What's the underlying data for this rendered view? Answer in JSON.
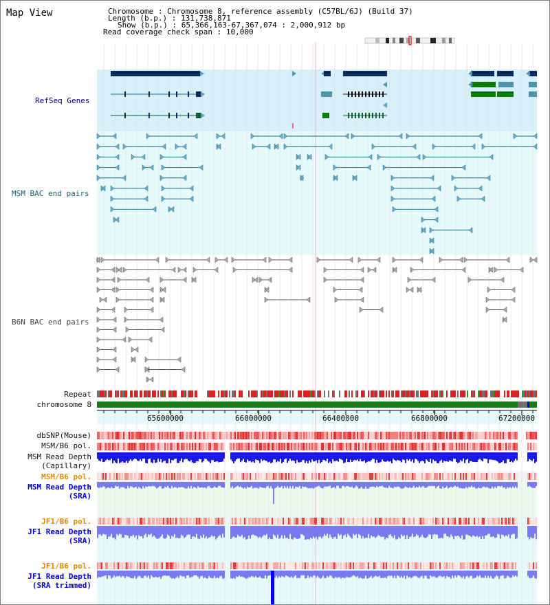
{
  "header": {
    "title": "Map View",
    "chromosome_label": "Chromosome",
    "chromosome_value": "Chromosome 8, reference assembly (C57BL/6J) (Build 37)",
    "length_label": "Length (b.p.)",
    "length_value": "131,738,871",
    "show_label": "Show (b.p.)",
    "show_value": "65,366,163-67,367,074 : 2,000,912 bp",
    "coverage_label": "Read coverage check span",
    "coverage_value": "10,000"
  },
  "tracks": {
    "refseq": "RefSeq Genes",
    "msm_bac": "MSM BAC end pairs",
    "b6n_bac": "B6N BAC end pairs",
    "repeat": "Repeat",
    "chromosome": "chromosome 8",
    "dbsnp": "dbSNP(Mouse)",
    "msm_pol": "MSM/B6 pol.",
    "msm_depth_1": "MSM Read Depth",
    "msm_depth_2": "(Capillary)",
    "msm_pol2": "MSM/B6 pol.",
    "msm_sra_1": "MSM Read Depth",
    "msm_sra_2": "(SRA)",
    "jf1_pol": "JF1/B6 pol.",
    "jf1_sra_1": "JF1 Read Depth",
    "jf1_sra_2": "(SRA)",
    "jf1_pol2": "JF1/B6 pol.",
    "jf1_trim_1": "JF1 Read Depth",
    "jf1_trim_2": "(SRA trimmed)"
  },
  "ruler": {
    "ticks": [
      "65600000",
      "66000000",
      "66400000",
      "66800000",
      "67200000"
    ]
  },
  "colors": {
    "refseq_bg": "#d8f0fa",
    "msm_bg": "#e6fafa",
    "navy_gene": "#0b2a5c",
    "teal_feature": "#4f93ad",
    "green_gene": "#0a7a0a",
    "chrom_bar": "#1a7a1a",
    "repeat_red": "#e02020",
    "depth_dark": "#1a1ae6",
    "depth_light": "#7a7af0"
  }
}
